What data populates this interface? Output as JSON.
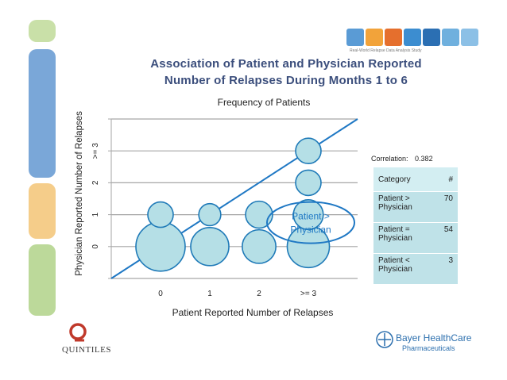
{
  "slide": {
    "title_line1": "Association of  Patient  and Physician  Reported",
    "title_line2": "Number  of Relapses  During  Months  1 to 6"
  },
  "logos": {
    "top_tagline": "Real-World Relapse Data Analysis Study",
    "quintiles": "QUINTILES",
    "bayer_line1": "Bayer HealthCare",
    "bayer_line2": "Pharmaceuticals"
  },
  "colors": {
    "bubble_fill": "#b5dfe6",
    "bubble_stroke": "#1f7ab8",
    "line": "#1f78c4",
    "grid": "#a6a6a6",
    "title": "#3b4e7c",
    "table_row": "#bfe2e8",
    "table_head": "#d3eef2"
  },
  "chart_data": {
    "type": "scatter",
    "subtype": "bubble",
    "title": "Frequency of Patients",
    "xlabel": "Patient Reported Number of Relapses",
    "ylabel": "Physician Reported Number of Relapses",
    "x_categories": [
      "0",
      "1",
      "2",
      ">= 3"
    ],
    "y_categories": [
      "0",
      "1",
      "2",
      ">= 3"
    ],
    "xlim": [
      -1,
      4
    ],
    "ylim": [
      -1,
      4
    ],
    "grid": true,
    "bubbles": [
      {
        "x": 0,
        "y": 0,
        "size": 30
      },
      {
        "x": 1,
        "y": 0,
        "size": 18
      },
      {
        "x": 2,
        "y": 0,
        "size": 14
      },
      {
        "x": 3,
        "y": 0,
        "size": 22
      },
      {
        "x": 0,
        "y": 1,
        "size": 8
      },
      {
        "x": 1,
        "y": 1,
        "size": 6
      },
      {
        "x": 2,
        "y": 1,
        "size": 9
      },
      {
        "x": 3,
        "y": 1,
        "size": 11
      },
      {
        "x": 3,
        "y": 2,
        "size": 8
      },
      {
        "x": 3,
        "y": 3,
        "size": 8
      }
    ],
    "reference_line": {
      "x": [
        -1,
        4
      ],
      "y": [
        -1,
        4
      ]
    },
    "annotation": {
      "text_line1": "Patient >",
      "text_line2": "Physician",
      "x": 3,
      "y": 1
    }
  },
  "correlation": {
    "label": "Correlation:",
    "value": "0.382"
  },
  "category_table": {
    "headers": [
      "Category",
      "#"
    ],
    "rows": [
      {
        "cat_line1": "Patient >",
        "cat_line2": "Physician",
        "count": "70"
      },
      {
        "cat_line1": "Patient =",
        "cat_line2": "Physician",
        "count": "54"
      },
      {
        "cat_line1": "Patient <",
        "cat_line2": "Physician",
        "count": "3"
      }
    ]
  }
}
